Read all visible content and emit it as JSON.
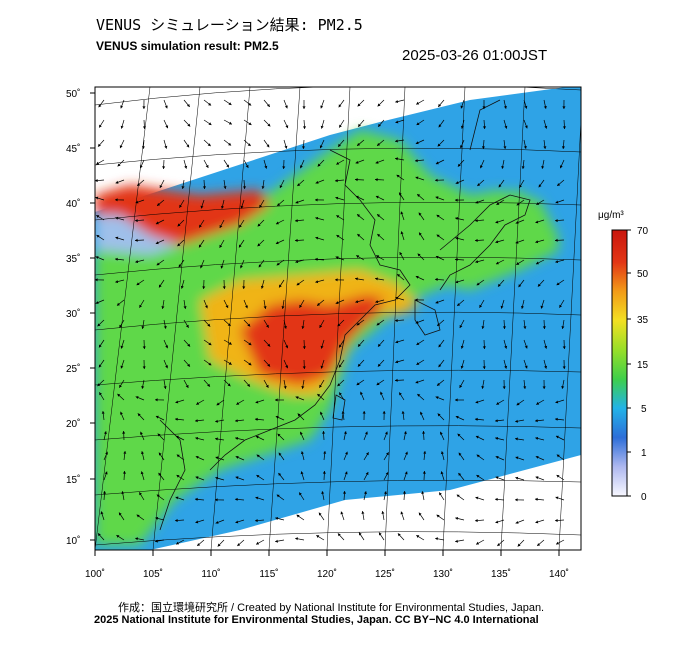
{
  "header": {
    "title_jp": "VENUS シミュレーション結果: PM2.5",
    "title_en": "VENUS simulation result: PM2.5",
    "timestamp": "2025-03-26 01:00JST"
  },
  "map": {
    "lat_labels": [
      "50˚",
      "45˚",
      "40˚",
      "35˚",
      "30˚",
      "25˚",
      "20˚",
      "15˚",
      "10˚"
    ],
    "lon_labels": [
      "100˚",
      "105˚",
      "110˚",
      "115˚",
      "120˚",
      "125˚",
      "130˚",
      "135˚",
      "140˚"
    ],
    "colors": {
      "ocean": "#2fa3e6",
      "land": "#5fd84a",
      "high": "#e23515",
      "mid": "#f0b419",
      "low": "#9fc0ea"
    }
  },
  "legend": {
    "unit": "μg/m³",
    "ticks": [
      "70",
      "50",
      "35",
      "15",
      "5",
      "1",
      "0"
    ],
    "colors": [
      "#f8f8ff",
      "#aeb8ef",
      "#2d6ed8",
      "#22b3e8",
      "#3fcf4a",
      "#98df28",
      "#f3e022",
      "#f29b18",
      "#e23515",
      "#c9160e"
    ]
  },
  "footer": {
    "credit": "作成：国立環境研究所 / Created by National Institute for Environmental Studies, Japan.",
    "license": "2025 National Institute for Environmental Studies, Japan. CC BY−NC 4.0 International"
  }
}
